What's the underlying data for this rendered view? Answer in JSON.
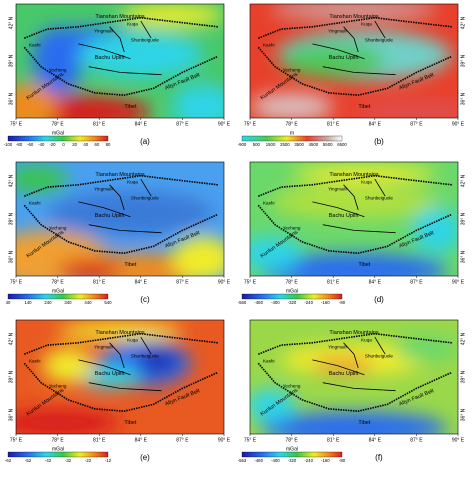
{
  "map_labels": [
    "Tianshan Mountains",
    "Bachu Uplift",
    "Kunlun Mountains",
    "Tibet",
    "Altyn Fault Belt",
    "Yecheng",
    "Shunbeiguole",
    "Kuqa",
    "Yingmaili",
    "Kashi"
  ],
  "x_ticks": [
    "75° E",
    "78° E",
    "81° E",
    "84° E",
    "87° E",
    "90° E"
  ],
  "y_ticks": [
    "36° N",
    "39° N",
    "42° N"
  ],
  "panels": [
    {
      "label": "(a)",
      "unit": "mGal",
      "colorbar_ticks": [
        -100,
        -80,
        -60,
        -40,
        -20,
        0,
        20,
        40,
        60,
        80
      ]
    },
    {
      "label": "(b)",
      "unit": "m",
      "colorbar_ticks": [
        -900,
        500,
        1500,
        2500,
        3500,
        4500,
        5500,
        6500
      ]
    },
    {
      "label": "(c)",
      "unit": "mGal",
      "colorbar_ticks": [
        40,
        140,
        240,
        340,
        440,
        540
      ]
    },
    {
      "label": "(d)",
      "unit": "mGal",
      "colorbar_ticks": [
        -560,
        -480,
        -400,
        -320,
        -240,
        -160,
        -80
      ]
    },
    {
      "label": "(e)",
      "unit": "mGal",
      "colorbar_ticks": [
        -62,
        -52,
        -42,
        -32,
        -22,
        -12
      ]
    },
    {
      "label": "(f)",
      "unit": "mGal",
      "colorbar_ticks": [
        -563,
        -480,
        -400,
        -320,
        -240,
        -160,
        -80
      ]
    }
  ]
}
